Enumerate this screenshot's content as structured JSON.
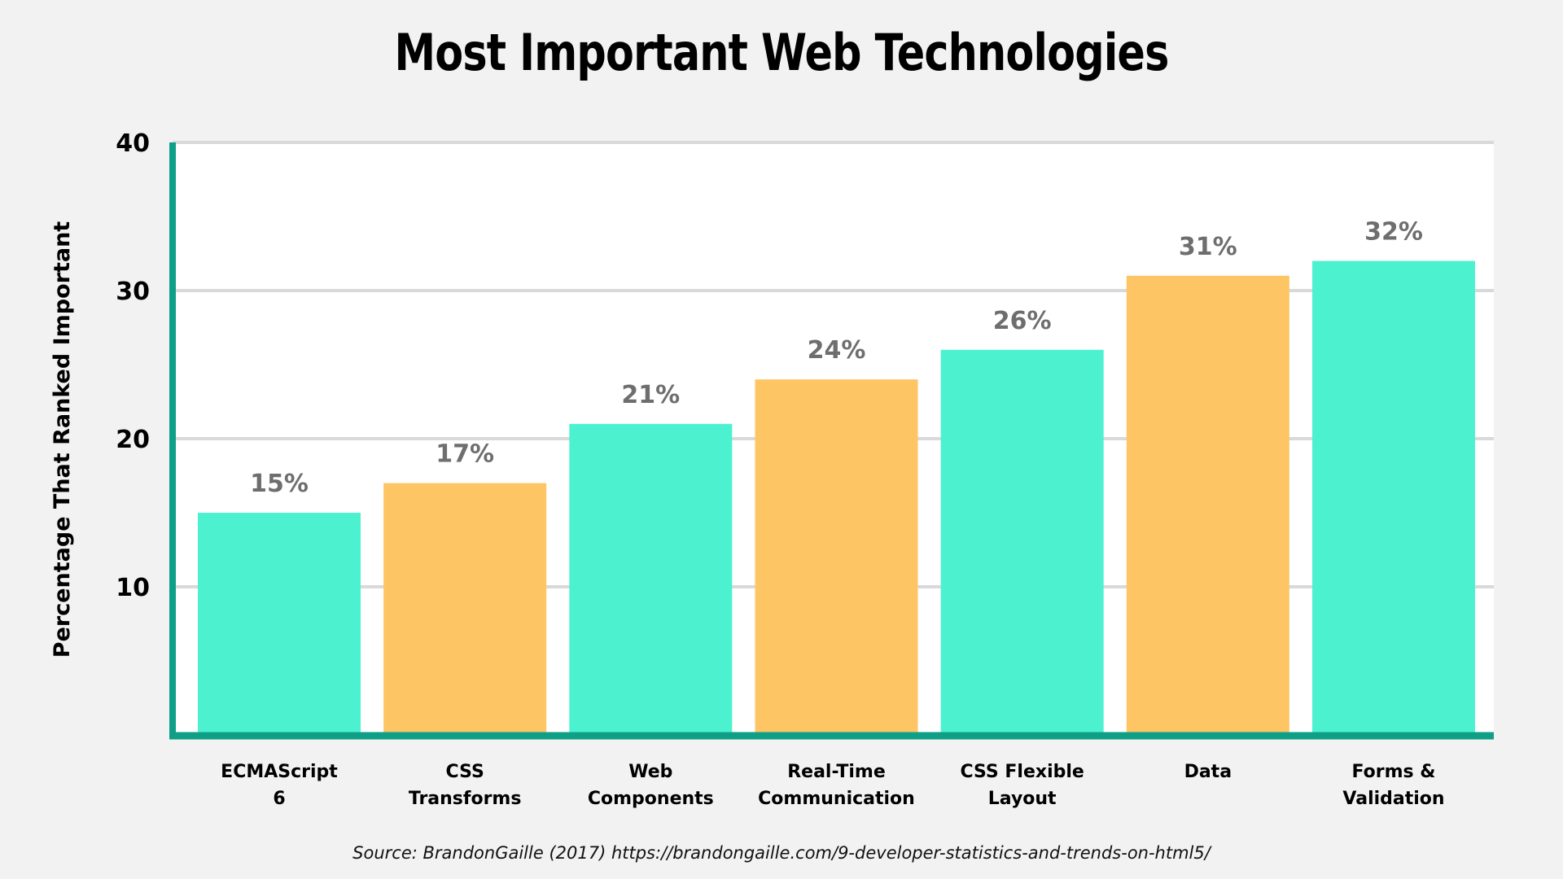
{
  "chart_data": {
    "type": "bar",
    "title": "Most Important Web Technologies",
    "ylabel": "Percentage That Ranked Important",
    "xlabel": "",
    "categories": [
      [
        "ECMAScript",
        "6"
      ],
      [
        "CSS",
        "Transforms"
      ],
      [
        "Web",
        "Components"
      ],
      [
        "Real-Time",
        "Communication"
      ],
      [
        "CSS Flexible",
        "Layout"
      ],
      [
        "Data"
      ],
      [
        "Forms &",
        "Validation"
      ]
    ],
    "values": [
      15,
      17,
      21,
      24,
      26,
      31,
      32
    ],
    "data_labels": [
      "15%",
      "17%",
      "21%",
      "24%",
      "26%",
      "31%",
      "32%"
    ],
    "bar_colors": [
      "#4cf2d0",
      "#fec564",
      "#4cf2d0",
      "#fec564",
      "#4cf2d0",
      "#fec564",
      "#4cf2d0"
    ],
    "axis_color": "#0e9f86",
    "ylim": [
      0,
      40
    ],
    "yticks": [
      10,
      20,
      30,
      40
    ],
    "grid": true,
    "source": "Source: BrandonGaille (2017)  https://brandongaille.com/9-developer-statistics-and-trends-on-html5/"
  }
}
